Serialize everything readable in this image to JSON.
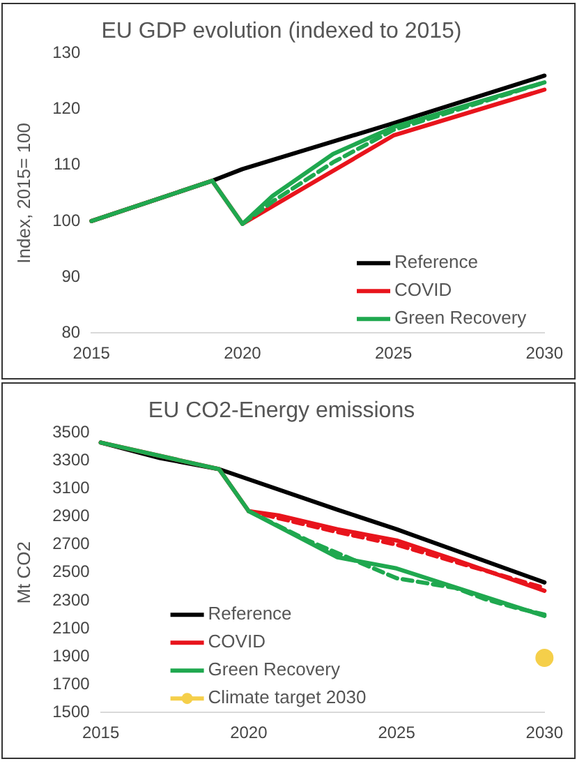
{
  "chart_data": [
    {
      "type": "line",
      "title": "EU GDP evolution (indexed to 2015)",
      "ylabel": "Index, 2015= 100",
      "xlim": [
        2015,
        2030
      ],
      "xticks": [
        2015,
        2020,
        2025,
        2030
      ],
      "ylim": [
        80,
        130
      ],
      "yticks": [
        80,
        90,
        100,
        110,
        120,
        130
      ],
      "grid": false,
      "legend": "bottom right",
      "marker": "none",
      "line_style": "solid",
      "series": [
        {
          "name": "Reference",
          "color": "#000000",
          "x": [
            2015,
            2019,
            2020,
            2025,
            2030
          ],
          "values": [
            100,
            107.2,
            109.3,
            117.5,
            126
          ]
        },
        {
          "name": "COVID",
          "color": "#e8141c",
          "x": [
            2015,
            2019,
            2020,
            2025,
            2030
          ],
          "values": [
            100,
            107.2,
            99.5,
            115.3,
            123.5
          ]
        },
        {
          "color": "#1fa84f",
          "line_style": "dashed",
          "x": [
            2020,
            2021,
            2022,
            2023,
            2025,
            2030
          ],
          "values": [
            99.5,
            103.5,
            107,
            110.5,
            116.3,
            124.8
          ]
        },
        {
          "name": "Green Recovery",
          "color": "#1fa84f",
          "x": [
            2015,
            2019,
            2020,
            2021,
            2023,
            2025,
            2030
          ],
          "values": [
            100,
            107.2,
            99.5,
            104.5,
            112,
            116.8,
            124.8
          ]
        }
      ]
    },
    {
      "type": "line",
      "title": "EU CO2-Energy emissions",
      "ylabel": "Mt CO2",
      "xlim": [
        2015,
        2030
      ],
      "xticks": [
        2015,
        2020,
        2025,
        2030
      ],
      "ylim": [
        1500,
        3500
      ],
      "yticks": [
        1500,
        1700,
        1900,
        2100,
        2300,
        2500,
        2700,
        2900,
        3100,
        3300,
        3500
      ],
      "grid": false,
      "legend": "bottom left",
      "marker": "none",
      "line_style": "solid",
      "series": [
        {
          "name": "Reference",
          "color": "#000000",
          "x": [
            2015,
            2017,
            2019,
            2023,
            2025,
            2030
          ],
          "values": [
            3430,
            3320,
            3240,
            2950,
            2810,
            2430
          ]
        },
        {
          "color": "#e8141c",
          "line_style": "dashed",
          "x": [
            2020,
            2023,
            2025,
            2030
          ],
          "values": [
            2940,
            2790,
            2700,
            2390
          ]
        },
        {
          "name": "COVID",
          "color": "#e8141c",
          "x": [
            2015,
            2019,
            2020,
            2021,
            2023,
            2025,
            2027,
            2030
          ],
          "values": [
            3430,
            3240,
            2940,
            2910,
            2810,
            2730,
            2590,
            2370
          ]
        },
        {
          "color": "#1fa84f",
          "line_style": "dashed",
          "x": [
            2020,
            2022,
            2024,
            2025,
            2027,
            2028,
            2029,
            2030
          ],
          "values": [
            2940,
            2730,
            2550,
            2460,
            2390,
            2310,
            2250,
            2200
          ]
        },
        {
          "name": "Green Recovery",
          "color": "#1fa84f",
          "x": [
            2015,
            2019,
            2020,
            2023,
            2025,
            2030
          ],
          "values": [
            3430,
            3240,
            2940,
            2610,
            2530,
            2190
          ]
        },
        {
          "name": "Climate target 2030",
          "color": "#f5cf4a",
          "marker": "circle",
          "x": [
            2030
          ],
          "values": [
            1890
          ]
        }
      ]
    }
  ]
}
